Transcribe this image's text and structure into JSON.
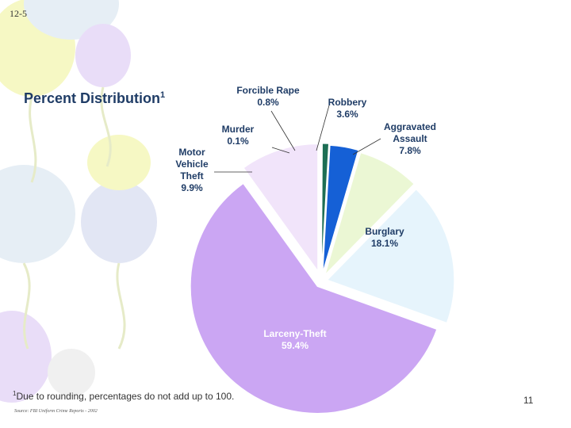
{
  "slide_label": "12-5",
  "title": "Percent Distribution",
  "title_superscript": "1",
  "footnote_marker": "1",
  "footnote": "Due to rounding, percentages do not add up to 100.",
  "source": "Source: FBI Uniform Crime Reports - 2002",
  "page_number": "11",
  "chart_data": {
    "type": "pie",
    "title": "Percent Distribution",
    "exploded": true,
    "slices": [
      {
        "name": "Murder",
        "lines": [
          "Murder"
        ],
        "value": 0.1,
        "label": "0.1%",
        "color": "#1c3f7a"
      },
      {
        "name": "Forcible Rape",
        "lines": [
          "Forcible Rape"
        ],
        "value": 0.8,
        "label": "0.8%",
        "color": "#1d6e54"
      },
      {
        "name": "Robbery",
        "lines": [
          "Robbery"
        ],
        "value": 3.6,
        "label": "3.6%",
        "color": "#1560d6"
      },
      {
        "name": "Aggravated Assault",
        "lines": [
          "Aggravated",
          "Assault"
        ],
        "value": 7.8,
        "label": "7.8%",
        "color": "#ebf7d4"
      },
      {
        "name": "Burglary",
        "lines": [
          "Burglary"
        ],
        "value": 18.1,
        "label": "18.1%",
        "color": "#e6f4fc"
      },
      {
        "name": "Larceny-Theft",
        "lines": [
          "Larceny-Theft"
        ],
        "value": 59.4,
        "label": "59.4%",
        "color": "#cba6f3"
      },
      {
        "name": "Motor Vehicle Theft",
        "lines": [
          "Motor",
          "Vehicle",
          "Theft"
        ],
        "value": 9.9,
        "label": "9.9%",
        "color": "#f1e4fa"
      }
    ]
  },
  "balloon_colors": [
    "#f6f8c4",
    "#e6eef5",
    "#e9ddf8",
    "#e2e6f4",
    "#f0f0f0"
  ]
}
